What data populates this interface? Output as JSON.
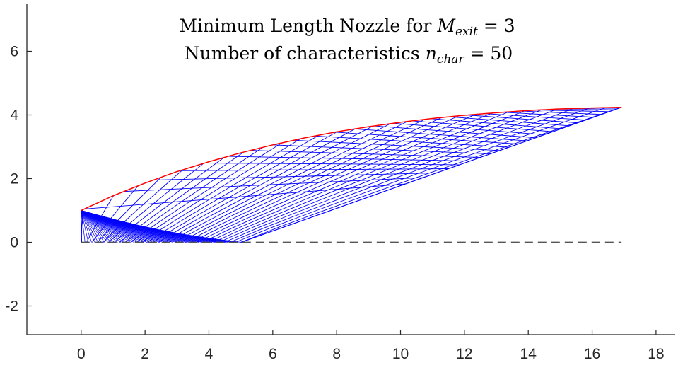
{
  "chart_data": {
    "type": "line",
    "title_line1": {
      "prefix": "Minimum Length Nozzle for ",
      "var": "M",
      "sub": "exit",
      "suffix": " = 3"
    },
    "title_line2": {
      "prefix": "Number of characteristics ",
      "var": "n",
      "sub": "char",
      "suffix": " = 50"
    },
    "xlabel": "",
    "ylabel": "",
    "xlim": [
      -1.7,
      18.6
    ],
    "ylim": [
      -2.9,
      7.5
    ],
    "xticks": [
      0,
      2,
      4,
      6,
      8,
      10,
      12,
      14,
      16,
      18
    ],
    "yticks": [
      -2,
      0,
      2,
      4,
      6
    ],
    "xtick_labels": [
      "0",
      "2",
      "4",
      "6",
      "8",
      "10",
      "12",
      "14",
      "16",
      "18"
    ],
    "ytick_labels": [
      "-2",
      "0",
      "2",
      "4",
      "6"
    ],
    "grid": false,
    "box": "left-bottom",
    "series": [
      {
        "role": "wall-contour",
        "color": "#ff0000",
        "style": "solid",
        "x": [
          0,
          1,
          2,
          3,
          4,
          5,
          6,
          7,
          8,
          9,
          10,
          11,
          12,
          13,
          14,
          15,
          16,
          16.92
        ],
        "y": [
          1.0,
          1.46,
          1.86,
          2.22,
          2.53,
          2.81,
          3.06,
          3.28,
          3.47,
          3.63,
          3.77,
          3.89,
          3.99,
          4.07,
          4.14,
          4.19,
          4.22,
          4.24
        ]
      },
      {
        "role": "centerline",
        "color": "#555555",
        "style": "dashed",
        "x": [
          0,
          16.92
        ],
        "y": [
          0,
          0
        ]
      }
    ],
    "characteristics": {
      "count": 50,
      "color": "#0000ff",
      "throat_x": 0,
      "throat_height": 1.0,
      "first_axis_hit_x": 5.0,
      "exit_x": 16.92,
      "exit_height": 4.24
    }
  }
}
